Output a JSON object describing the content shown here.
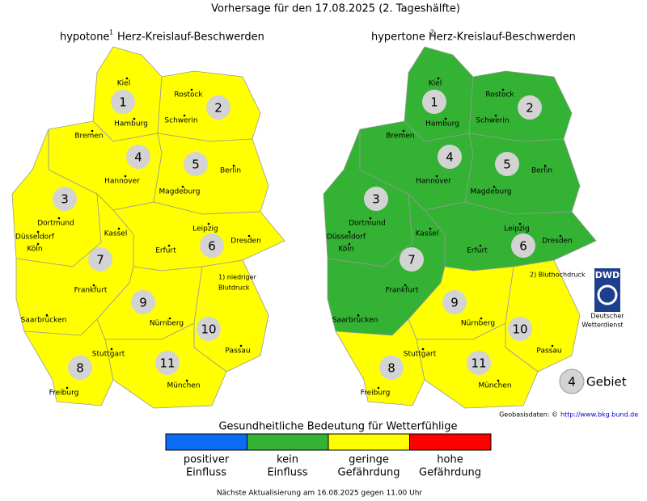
{
  "title": "Vorhersage für den 17.08.2025 (2. Tageshälfte)",
  "maps": [
    {
      "title": "hypotone",
      "superscript": "1",
      "subtitle": "Herz-Kreislauf-Beschwerden",
      "regions": [
        {
          "label": 1,
          "level": 2
        },
        {
          "label": 2,
          "level": 2
        },
        {
          "label": 3,
          "level": 2
        },
        {
          "label": 4,
          "level": 2
        },
        {
          "label": 5,
          "level": 2
        },
        {
          "label": 6,
          "level": 2
        },
        {
          "label": 7,
          "level": 2
        },
        {
          "label": 8,
          "level": 2
        },
        {
          "label": 9,
          "level": 2
        },
        {
          "label": 10,
          "level": 2
        },
        {
          "label": 11,
          "level": 2
        }
      ],
      "footnote": [
        "1) niedriger",
        "Blutdruck"
      ]
    },
    {
      "title": "hypertone",
      "superscript": "2",
      "subtitle": "Herz-Kreislauf-Beschwerden",
      "regions": [
        {
          "label": 1,
          "level": 1
        },
        {
          "label": 2,
          "level": 1
        },
        {
          "label": 3,
          "level": 1
        },
        {
          "label": 4,
          "level": 1
        },
        {
          "label": 5,
          "level": 1
        },
        {
          "label": 6,
          "level": 1
        },
        {
          "label": 7,
          "level": 1
        },
        {
          "label": 8,
          "level": 2
        },
        {
          "label": 9,
          "level": 2
        },
        {
          "label": 10,
          "level": 2
        },
        {
          "label": 11,
          "level": 2
        }
      ],
      "footnote": [
        "2) Bluthochdruck"
      ]
    }
  ],
  "cities": [
    "Kiel",
    "Rostock",
    "Hamburg",
    "Schwerin",
    "Bremen",
    "Berlin",
    "Hannover",
    "Magdeburg",
    "Dortmund",
    "Düsseldorf",
    "Köln",
    "Kassel",
    "Leipzig",
    "Dresden",
    "Erfurt",
    "Frankfurt",
    "Nürnberg",
    "Saarbrücken",
    "Stuttgart",
    "Passau",
    "Freiburg",
    "München"
  ],
  "logo": {
    "mark": "DWD",
    "lines": [
      "Deutscher",
      "Wetterdienst"
    ]
  },
  "key": {
    "sample": 4,
    "label": "Gebiet"
  },
  "source": {
    "label": "Geobasisdaten: ©",
    "link": "http://www.bkg.bund.de"
  },
  "legend": {
    "title": "Gesundheitliche Bedeutung für Wetterfühlige",
    "levels": [
      {
        "color": "#0a6cf5",
        "label": [
          "positiver",
          "Einfluss"
        ]
      },
      {
        "color": "#33b233",
        "label": [
          "kein",
          "Einfluss"
        ]
      },
      {
        "color": "#ffff00",
        "label": [
          "geringe",
          "Gefährdung"
        ]
      },
      {
        "color": "#ff0000",
        "label": [
          "hohe",
          "Gefährdung"
        ]
      }
    ]
  },
  "footer": "Nächste Aktualisierung am 16.08.2025 gegen 11.00 Uhr"
}
